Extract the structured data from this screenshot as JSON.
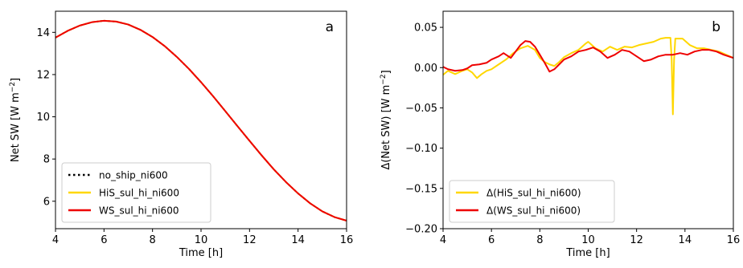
{
  "chart_data": [
    {
      "type": "line",
      "panel_label": "a",
      "xlabel": "Time [h]",
      "ylabel_main": "Net SW [W m",
      "ylabel_exp": "−2",
      "ylabel_end": "]",
      "xlim": [
        4,
        16
      ],
      "ylim": [
        4.7,
        15.0
      ],
      "xticks": [
        4,
        6,
        8,
        10,
        12,
        14,
        16
      ],
      "yticks": [
        6,
        8,
        10,
        12,
        14
      ],
      "legend_position": "lower-left",
      "x": [
        4.0,
        4.5,
        5.0,
        5.5,
        6.0,
        6.5,
        7.0,
        7.5,
        8.0,
        8.5,
        9.0,
        9.5,
        10.0,
        10.5,
        11.0,
        11.5,
        12.0,
        12.5,
        13.0,
        13.5,
        14.0,
        14.5,
        15.0,
        15.5,
        16.0
      ],
      "series": [
        {
          "name": "no_ship_ni600",
          "color": "#000000",
          "dash": "dotted",
          "values": [
            13.75,
            14.07,
            14.32,
            14.48,
            14.55,
            14.51,
            14.37,
            14.12,
            13.78,
            13.35,
            12.84,
            12.27,
            11.64,
            10.97,
            10.27,
            9.56,
            8.86,
            8.17,
            7.51,
            6.91,
            6.37,
            5.9,
            5.52,
            5.25,
            5.08
          ]
        },
        {
          "name": "HiS_sul_hi_ni600",
          "color": "#ffd700",
          "dash": "solid",
          "values": [
            13.75,
            14.07,
            14.32,
            14.48,
            14.55,
            14.51,
            14.37,
            14.12,
            13.78,
            13.35,
            12.84,
            12.27,
            11.64,
            10.97,
            10.27,
            9.56,
            8.86,
            8.17,
            7.51,
            6.91,
            6.37,
            5.9,
            5.52,
            5.25,
            5.08
          ]
        },
        {
          "name": "WS_sul_hi_ni600",
          "color": "#ee0000",
          "dash": "solid",
          "values": [
            13.75,
            14.07,
            14.32,
            14.48,
            14.55,
            14.51,
            14.37,
            14.12,
            13.78,
            13.35,
            12.84,
            12.27,
            11.64,
            10.97,
            10.27,
            9.56,
            8.86,
            8.17,
            7.51,
            6.91,
            6.37,
            5.9,
            5.52,
            5.25,
            5.08
          ]
        }
      ]
    },
    {
      "type": "line",
      "panel_label": "b",
      "xlabel": "Time [h]",
      "ylabel_main": "Δ(Net SW) [W m",
      "ylabel_exp": "−2",
      "ylabel_end": "]",
      "xlim": [
        4,
        16
      ],
      "ylim": [
        -0.2,
        0.07
      ],
      "xticks": [
        4,
        6,
        8,
        10,
        12,
        14,
        16
      ],
      "yticks": [
        -0.2,
        -0.15,
        -0.1,
        -0.05,
        0.0,
        0.05
      ],
      "ytick_labels": [
        "−0.20",
        "−0.15",
        "−0.10",
        "−0.05",
        "0.00",
        "0.05"
      ],
      "legend_position": "lower-left",
      "series": [
        {
          "name": "Δ(HiS_sul_hi_ni600)",
          "color": "#ffd700",
          "x": [
            4.0,
            4.2,
            4.5,
            4.8,
            5.0,
            5.2,
            5.4,
            5.6,
            5.8,
            6.0,
            6.3,
            6.6,
            6.9,
            7.2,
            7.5,
            7.8,
            8.0,
            8.2,
            8.4,
            8.6,
            8.8,
            9.0,
            9.3,
            9.6,
            9.9,
            10.0,
            10.3,
            10.6,
            10.9,
            11.2,
            11.5,
            11.8,
            12.1,
            12.4,
            12.7,
            13.0,
            13.2,
            13.4,
            13.45,
            13.5,
            13.55,
            13.6,
            13.9,
            14.2,
            14.5,
            14.8,
            15.1,
            15.4,
            15.7,
            16.0
          ],
          "values": [
            -0.009,
            -0.004,
            -0.008,
            -0.004,
            -0.002,
            -0.006,
            -0.013,
            -0.008,
            -0.004,
            -0.002,
            0.004,
            0.01,
            0.018,
            0.024,
            0.027,
            0.022,
            0.012,
            0.007,
            0.004,
            0.002,
            0.007,
            0.013,
            0.018,
            0.022,
            0.03,
            0.032,
            0.024,
            0.02,
            0.026,
            0.022,
            0.026,
            0.025,
            0.028,
            0.03,
            0.032,
            0.036,
            0.037,
            0.037,
            0.01,
            -0.058,
            0.01,
            0.036,
            0.036,
            0.028,
            0.024,
            0.024,
            0.022,
            0.02,
            0.016,
            0.012
          ]
        },
        {
          "name": "Δ(WS_sul_hi_ni600)",
          "color": "#ee0000",
          "x": [
            4.0,
            4.2,
            4.5,
            4.8,
            5.0,
            5.2,
            5.5,
            5.8,
            6.0,
            6.3,
            6.5,
            6.8,
            7.0,
            7.2,
            7.4,
            7.6,
            7.8,
            8.0,
            8.2,
            8.4,
            8.6,
            8.8,
            9.0,
            9.3,
            9.6,
            9.9,
            10.2,
            10.5,
            10.8,
            11.1,
            11.4,
            11.7,
            12.0,
            12.3,
            12.6,
            12.9,
            13.2,
            13.5,
            13.8,
            14.1,
            14.4,
            14.7,
            15.0,
            15.3,
            15.6,
            16.0
          ],
          "values": [
            0.001,
            -0.002,
            -0.004,
            -0.003,
            -0.001,
            0.003,
            0.004,
            0.006,
            0.01,
            0.014,
            0.018,
            0.012,
            0.02,
            0.028,
            0.033,
            0.032,
            0.026,
            0.016,
            0.006,
            -0.005,
            -0.002,
            0.004,
            0.01,
            0.014,
            0.02,
            0.022,
            0.025,
            0.02,
            0.012,
            0.016,
            0.022,
            0.02,
            0.014,
            0.008,
            0.01,
            0.014,
            0.016,
            0.016,
            0.018,
            0.016,
            0.02,
            0.022,
            0.022,
            0.02,
            0.016,
            0.012
          ]
        }
      ]
    }
  ]
}
